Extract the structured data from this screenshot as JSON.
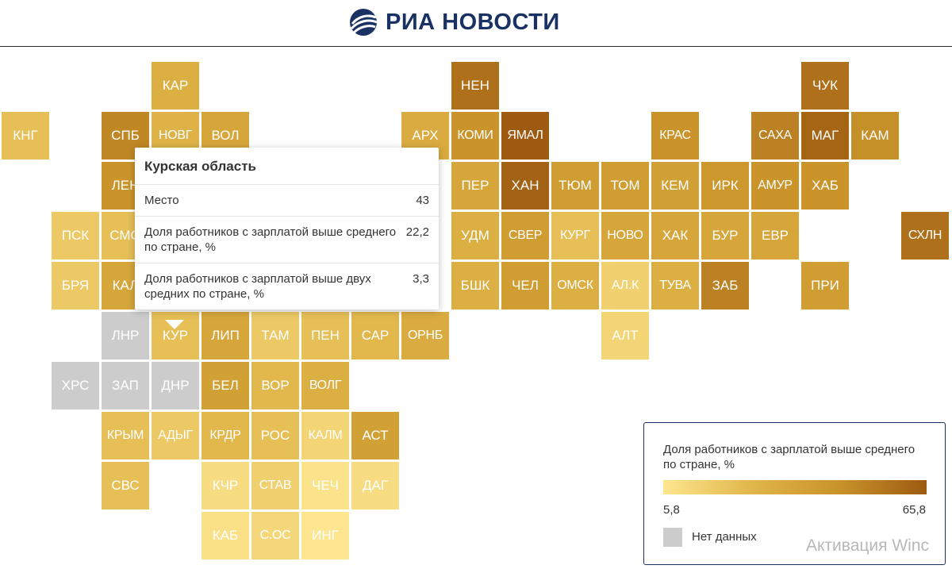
{
  "header": {
    "logo_text": "РИА НОВОСТИ",
    "brand_color": "#1a3163"
  },
  "tooltip": {
    "title": "Курская область",
    "rows": [
      {
        "label": "Место",
        "value": "43"
      },
      {
        "label": "Доля работников с зарплатой выше среднего по стране, %",
        "value": "22,2"
      },
      {
        "label": "Доля работников с зарплатой выше двух средних по стране, %",
        "value": "3,3"
      }
    ]
  },
  "legend": {
    "title": "Доля работников с зарплатой выше среднего по стране, %",
    "min_label": "5,8",
    "max_label": "65,8",
    "min_value": 5.8,
    "max_value": 65.8,
    "color_low": "#fde68f",
    "color_high": "#9d5a10",
    "no_data_label": "Нет данных",
    "no_data_color": "#cccccc"
  },
  "watermark": "Активация Winc",
  "regions": [
    {
      "label": "",
      "col": 4,
      "row": -1,
      "value": 50
    },
    {
      "label": "КАР",
      "col": 3,
      "row": 0,
      "value": 30
    },
    {
      "label": "НЕН",
      "col": 9,
      "row": 0,
      "value": 58
    },
    {
      "label": "ЧУК",
      "col": 16,
      "row": 0,
      "value": 58
    },
    {
      "label": "КНГ",
      "col": 0,
      "row": 1,
      "value": 22
    },
    {
      "label": "СПБ",
      "col": 2,
      "row": 1,
      "value": 50
    },
    {
      "label": "НОВГ",
      "col": 3,
      "row": 1,
      "value": 28
    },
    {
      "label": "ВОЛ",
      "col": 4,
      "row": 1,
      "value": 35
    },
    {
      "label": "АРХ",
      "col": 8,
      "row": 1,
      "value": 32
    },
    {
      "label": "КОМИ",
      "col": 9,
      "row": 1,
      "value": 45
    },
    {
      "label": "ЯМАЛ",
      "col": 10,
      "row": 1,
      "value": 65.8
    },
    {
      "label": "КРАС",
      "col": 13,
      "row": 1,
      "value": 45
    },
    {
      "label": "САХА",
      "col": 15,
      "row": 1,
      "value": 52
    },
    {
      "label": "МАГ",
      "col": 16,
      "row": 1,
      "value": 62
    },
    {
      "label": "КАМ",
      "col": 17,
      "row": 1,
      "value": 47
    },
    {
      "label": "ЛЕН",
      "col": 2,
      "row": 2,
      "value": 45
    },
    {
      "label": "ПЕР",
      "col": 9,
      "row": 2,
      "value": 35
    },
    {
      "label": "ХАН",
      "col": 10,
      "row": 2,
      "value": 63
    },
    {
      "label": "ТЮМ",
      "col": 11,
      "row": 2,
      "value": 40
    },
    {
      "label": "ТОМ",
      "col": 12,
      "row": 2,
      "value": 40
    },
    {
      "label": "КЕМ",
      "col": 13,
      "row": 2,
      "value": 38
    },
    {
      "label": "ИРК",
      "col": 14,
      "row": 2,
      "value": 43
    },
    {
      "label": "АМУР",
      "col": 15,
      "row": 2,
      "value": 45
    },
    {
      "label": "ХАБ",
      "col": 16,
      "row": 2,
      "value": 45
    },
    {
      "label": "ПСК",
      "col": 1,
      "row": 3,
      "value": 18
    },
    {
      "label": "СМО",
      "col": 2,
      "row": 3,
      "value": 22
    },
    {
      "label": "УДМ",
      "col": 9,
      "row": 3,
      "value": 30
    },
    {
      "label": "СВЕР",
      "col": 10,
      "row": 3,
      "value": 40
    },
    {
      "label": "КУРГ",
      "col": 11,
      "row": 3,
      "value": 22
    },
    {
      "label": "НОВО",
      "col": 12,
      "row": 3,
      "value": 35
    },
    {
      "label": "ХАК",
      "col": 13,
      "row": 3,
      "value": 35
    },
    {
      "label": "БУР",
      "col": 14,
      "row": 3,
      "value": 35
    },
    {
      "label": "ЕВР",
      "col": 15,
      "row": 3,
      "value": 35
    },
    {
      "label": "СХЛН",
      "col": 18,
      "row": 3,
      "value": 58
    },
    {
      "label": "БРЯ",
      "col": 1,
      "row": 4,
      "value": 18
    },
    {
      "label": "КАЛ",
      "col": 2,
      "row": 4,
      "value": 35
    },
    {
      "label": "БШК",
      "col": 9,
      "row": 4,
      "value": 30
    },
    {
      "label": "ЧЕЛ",
      "col": 10,
      "row": 4,
      "value": 40
    },
    {
      "label": "ОМСК",
      "col": 11,
      "row": 4,
      "value": 30
    },
    {
      "label": "АЛ.К",
      "col": 12,
      "row": 4,
      "value": 15
    },
    {
      "label": "ТУВА",
      "col": 13,
      "row": 4,
      "value": 30
    },
    {
      "label": "ЗАБ",
      "col": 14,
      "row": 4,
      "value": 52
    },
    {
      "label": "ПРИ",
      "col": 16,
      "row": 4,
      "value": 40
    },
    {
      "label": "ЛНР",
      "col": 2,
      "row": 5,
      "value": null
    },
    {
      "label": "КУР",
      "col": 3,
      "row": 5,
      "value": 22.2
    },
    {
      "label": "ЛИП",
      "col": 4,
      "row": 5,
      "value": 35
    },
    {
      "label": "ТАМ",
      "col": 5,
      "row": 5,
      "value": 18
    },
    {
      "label": "ПЕН",
      "col": 6,
      "row": 5,
      "value": 22
    },
    {
      "label": "САР",
      "col": 7,
      "row": 5,
      "value": 25
    },
    {
      "label": "ОРНБ",
      "col": 8,
      "row": 5,
      "value": 32
    },
    {
      "label": "АЛТ",
      "col": 12,
      "row": 5,
      "value": 13
    },
    {
      "label": "ХРС",
      "col": 1,
      "row": 6,
      "value": null
    },
    {
      "label": "ЗАП",
      "col": 2,
      "row": 6,
      "value": null
    },
    {
      "label": "ДНР",
      "col": 3,
      "row": 6,
      "value": null
    },
    {
      "label": "БЕЛ",
      "col": 4,
      "row": 6,
      "value": 38
    },
    {
      "label": "ВОР",
      "col": 5,
      "row": 6,
      "value": 25
    },
    {
      "label": "ВОЛГ",
      "col": 6,
      "row": 6,
      "value": 30
    },
    {
      "label": "КРЫМ",
      "col": 2,
      "row": 7,
      "value": 22
    },
    {
      "label": "АДЫГ",
      "col": 3,
      "row": 7,
      "value": 18
    },
    {
      "label": "КРДР",
      "col": 4,
      "row": 7,
      "value": 25
    },
    {
      "label": "РОС",
      "col": 5,
      "row": 7,
      "value": 22
    },
    {
      "label": "КАЛМ",
      "col": 6,
      "row": 7,
      "value": 13
    },
    {
      "label": "АСТ",
      "col": 7,
      "row": 7,
      "value": 38
    },
    {
      "label": "СВС",
      "col": 2,
      "row": 8,
      "value": 22
    },
    {
      "label": "КЧР",
      "col": 4,
      "row": 8,
      "value": 10
    },
    {
      "label": "СТАВ",
      "col": 5,
      "row": 8,
      "value": 15
    },
    {
      "label": "ЧЕЧ",
      "col": 6,
      "row": 8,
      "value": 7
    },
    {
      "label": "ДАГ",
      "col": 7,
      "row": 8,
      "value": 10
    },
    {
      "label": "КАБ",
      "col": 4,
      "row": 9,
      "value": 8
    },
    {
      "label": "С.ОС",
      "col": 5,
      "row": 9,
      "value": 12
    },
    {
      "label": "ИНГ",
      "col": 6,
      "row": 9,
      "value": 5.8
    }
  ]
}
